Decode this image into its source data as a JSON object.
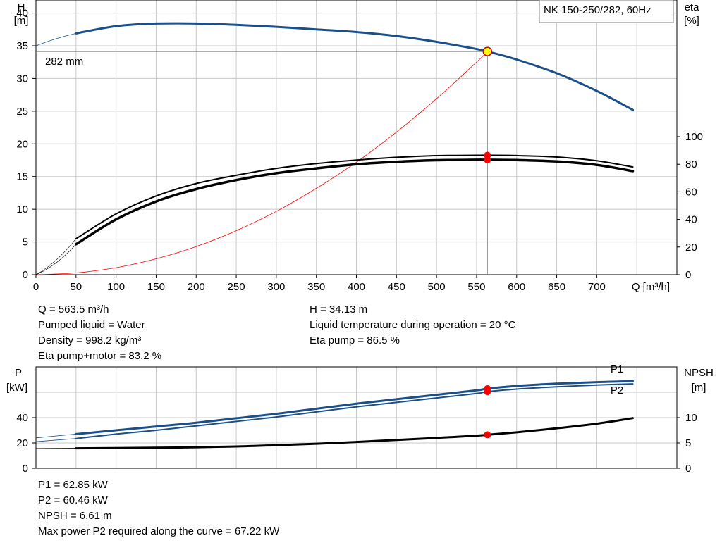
{
  "chart_data": [
    {
      "type": "line",
      "title": "NK 150-250/282, 60Hz",
      "xlabel": "Q [m³/h]",
      "ylabel_left": [
        "H",
        "[m]"
      ],
      "ylabel_right": [
        "eta",
        "[%]"
      ],
      "xlim": [
        0,
        800
      ],
      "ylim_left": [
        0,
        42
      ],
      "ylim_right": [
        0,
        100
      ],
      "grid": true,
      "x_ticks": [
        0,
        50,
        100,
        150,
        200,
        250,
        300,
        350,
        400,
        450,
        500,
        550,
        600,
        650,
        700
      ],
      "y_ticks_left": [
        0,
        5,
        10,
        15,
        20,
        25,
        30,
        35,
        40
      ],
      "y_ticks_right": [
        0,
        20,
        40,
        60,
        80,
        100
      ],
      "curve_label": "282 mm",
      "series": [
        {
          "name": "H",
          "color": "#1a4f8a",
          "x": [
            50,
            100,
            150,
            200,
            250,
            300,
            350,
            400,
            450,
            500,
            550,
            563.5,
            600,
            650,
            700,
            745
          ],
          "y": [
            36.9,
            38.0,
            38.4,
            38.4,
            38.2,
            37.9,
            37.5,
            37.1,
            36.5,
            35.6,
            34.5,
            34.13,
            32.9,
            30.8,
            28.1,
            25.2
          ]
        },
        {
          "name": "Eta pump",
          "color": "#000000",
          "x": [
            50,
            100,
            150,
            200,
            250,
            300,
            350,
            400,
            450,
            500,
            550,
            563.5,
            600,
            650,
            700,
            745
          ],
          "y": [
            26,
            44,
            57,
            66,
            72,
            77,
            80.5,
            83,
            85,
            86.2,
            86.5,
            86.5,
            86.3,
            85.2,
            82.5,
            78
          ]
        },
        {
          "name": "Eta pump+motor",
          "color": "#000000",
          "x": [
            50,
            100,
            150,
            200,
            250,
            300,
            350,
            400,
            450,
            500,
            550,
            563.5,
            600,
            650,
            700,
            745
          ],
          "y": [
            22,
            40,
            53,
            62,
            68.5,
            73.5,
            77,
            80,
            81.8,
            82.9,
            83.2,
            83.2,
            83.0,
            82,
            79.5,
            75
          ]
        },
        {
          "name": "System curve",
          "color": "#ff0000",
          "x": [
            0,
            50,
            100,
            150,
            200,
            250,
            300,
            350,
            400,
            450,
            500,
            550,
            563.5
          ],
          "y": [
            0,
            0.27,
            1.07,
            2.42,
            4.3,
            6.72,
            9.67,
            13.2,
            17.2,
            21.8,
            26.9,
            32.5,
            34.13
          ]
        }
      ],
      "duty_point": {
        "x": 563.5,
        "y": 34.13
      }
    },
    {
      "type": "line",
      "xlim": [
        0,
        800
      ],
      "ylim_left": [
        0,
        80
      ],
      "ylim_right": [
        0,
        20
      ],
      "ylabel_left": [
        "P",
        "[kW]"
      ],
      "ylabel_right": [
        "NPSH",
        "[m]"
      ],
      "grid": true,
      "y_ticks_left": [
        0,
        20,
        40
      ],
      "y_ticks_right": [
        0,
        5,
        10
      ],
      "series": [
        {
          "name": "P1",
          "color": "#1a4f8a",
          "x": [
            0,
            50,
            100,
            150,
            200,
            250,
            300,
            350,
            400,
            450,
            500,
            550,
            563.5,
            600,
            650,
            700,
            745
          ],
          "y": [
            24,
            27,
            30,
            33,
            36,
            39.5,
            43,
            47,
            51,
            54.5,
            58,
            61.5,
            62.85,
            65,
            66.8,
            68,
            68.8
          ]
        },
        {
          "name": "P2",
          "color": "#1a4f8a",
          "x": [
            0,
            50,
            100,
            150,
            200,
            250,
            300,
            350,
            400,
            450,
            500,
            550,
            563.5,
            600,
            650,
            700,
            745
          ],
          "y": [
            21,
            23.5,
            27,
            30,
            33.5,
            37,
            40.5,
            44.5,
            48.5,
            52,
            55.5,
            59,
            60.46,
            62.5,
            64.3,
            65.7,
            66.6
          ]
        },
        {
          "name": "NPSH",
          "color": "#000000",
          "x": [
            0,
            50,
            100,
            150,
            200,
            250,
            300,
            350,
            400,
            450,
            500,
            550,
            563.5,
            600,
            650,
            700,
            745
          ],
          "y": [
            3.9,
            3.95,
            4.0,
            4.05,
            4.15,
            4.3,
            4.55,
            4.85,
            5.2,
            5.6,
            6.0,
            6.45,
            6.61,
            7.1,
            7.9,
            8.8,
            9.9
          ]
        }
      ],
      "duty_points": [
        {
          "series": "P1",
          "x": 563.5,
          "y": 62.85
        },
        {
          "series": "P2",
          "x": 563.5,
          "y": 60.46
        },
        {
          "series": "NPSH",
          "x": 563.5,
          "y": 6.61
        }
      ]
    }
  ],
  "results_top": {
    "left": [
      "Q = 563.5 m³/h",
      "Pumped liquid = Water",
      "Density = 998.2 kg/m³",
      "Eta pump+motor = 83.2 %"
    ],
    "right": [
      "H = 34.13 m",
      "Liquid temperature during operation = 20 °C",
      "Eta pump = 86.5 %"
    ]
  },
  "results_bottom": [
    "P1 = 62.85 kW",
    "P2 = 60.46 kW",
    "NPSH = 6.61 m",
    "Max power P2 required along the curve = 67.22 kW"
  ]
}
